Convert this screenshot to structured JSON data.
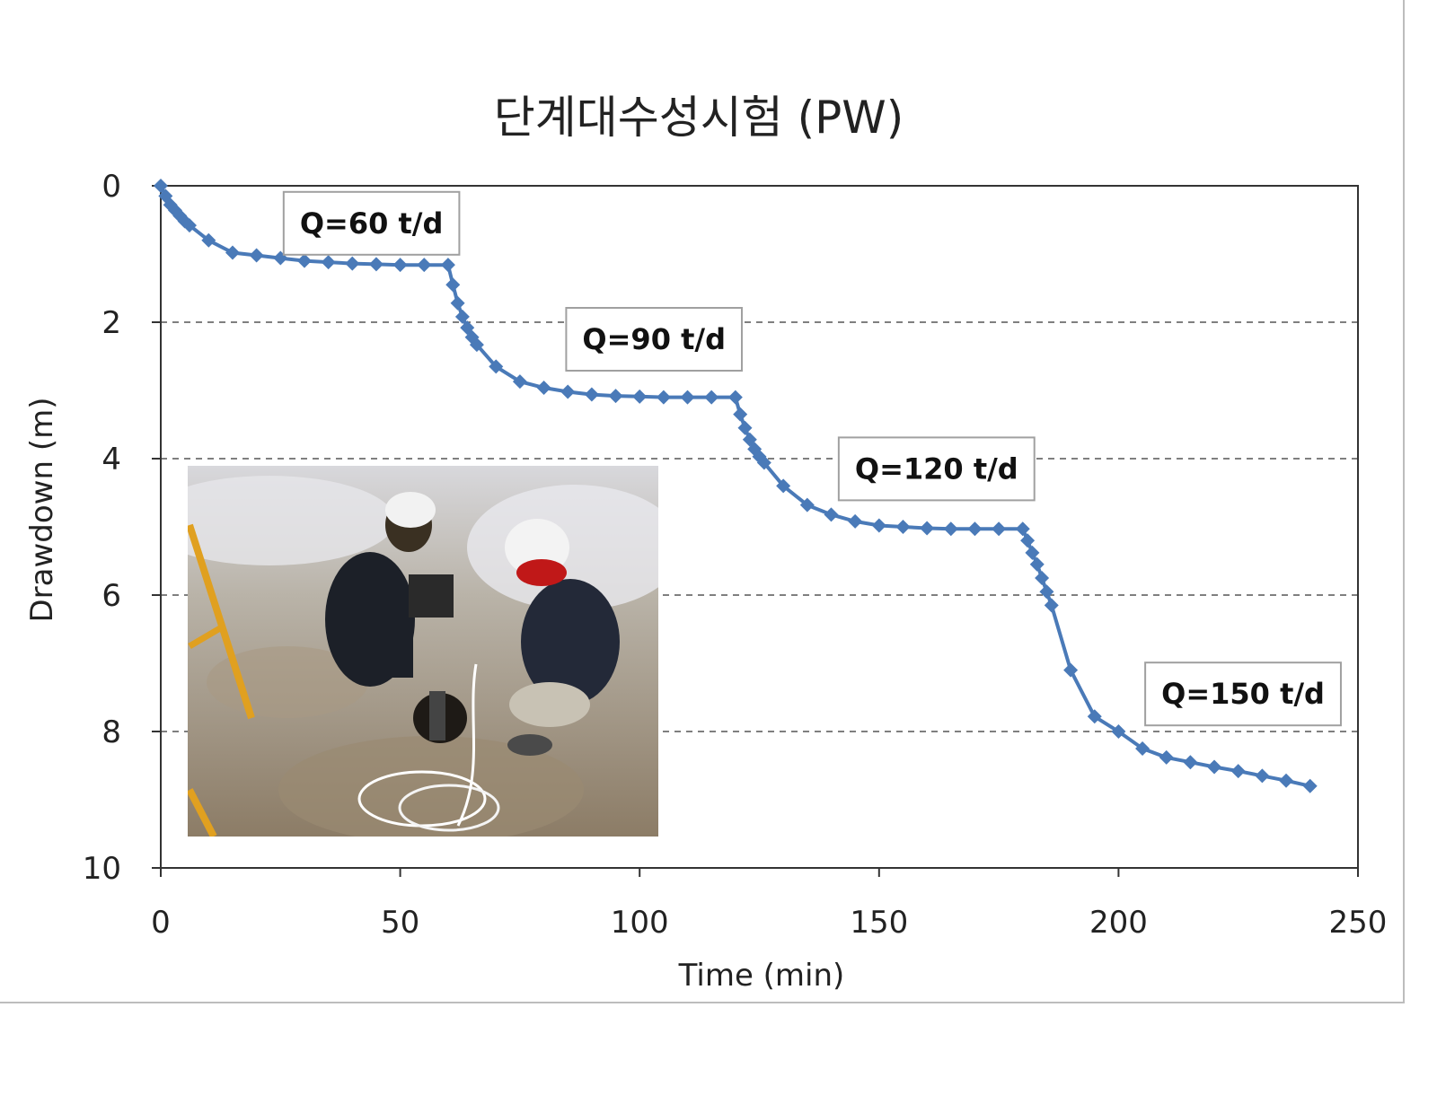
{
  "chart_data": {
    "type": "line",
    "title": "단계대수성시험 (PW)",
    "xlabel": "Time (min)",
    "ylabel": "Drawdown (m)",
    "xlim": [
      0,
      250
    ],
    "ylim": [
      0,
      10
    ],
    "y_inverted": true,
    "x_ticks": [
      0,
      50,
      100,
      150,
      200,
      250
    ],
    "y_ticks": [
      0,
      2,
      4,
      6,
      8,
      10
    ],
    "grid": "horizontal dashed",
    "series": [
      {
        "color": "#4a7ab8",
        "marker": "diamond",
        "points": [
          [
            0,
            0.0
          ],
          [
            1,
            0.15
          ],
          [
            2,
            0.28
          ],
          [
            3,
            0.36
          ],
          [
            4,
            0.44
          ],
          [
            5,
            0.52
          ],
          [
            6,
            0.58
          ],
          [
            10,
            0.8
          ],
          [
            15,
            0.98
          ],
          [
            20,
            1.02
          ],
          [
            25,
            1.06
          ],
          [
            30,
            1.1
          ],
          [
            35,
            1.12
          ],
          [
            40,
            1.14
          ],
          [
            45,
            1.15
          ],
          [
            50,
            1.16
          ],
          [
            55,
            1.16
          ],
          [
            60,
            1.16
          ],
          [
            61,
            1.45
          ],
          [
            62,
            1.72
          ],
          [
            63,
            1.92
          ],
          [
            64,
            2.08
          ],
          [
            65,
            2.22
          ],
          [
            66,
            2.33
          ],
          [
            70,
            2.65
          ],
          [
            75,
            2.87
          ],
          [
            80,
            2.96
          ],
          [
            85,
            3.02
          ],
          [
            90,
            3.06
          ],
          [
            95,
            3.08
          ],
          [
            100,
            3.09
          ],
          [
            105,
            3.1
          ],
          [
            110,
            3.1
          ],
          [
            115,
            3.1
          ],
          [
            120,
            3.1
          ],
          [
            121,
            3.35
          ],
          [
            122,
            3.55
          ],
          [
            123,
            3.72
          ],
          [
            124,
            3.86
          ],
          [
            125,
            3.97
          ],
          [
            126,
            4.06
          ],
          [
            130,
            4.4
          ],
          [
            135,
            4.68
          ],
          [
            140,
            4.82
          ],
          [
            145,
            4.92
          ],
          [
            150,
            4.98
          ],
          [
            155,
            5.0
          ],
          [
            160,
            5.02
          ],
          [
            165,
            5.03
          ],
          [
            170,
            5.03
          ],
          [
            175,
            5.03
          ],
          [
            180,
            5.03
          ],
          [
            181,
            5.2
          ],
          [
            182,
            5.38
          ],
          [
            183,
            5.55
          ],
          [
            184,
            5.75
          ],
          [
            185,
            5.95
          ],
          [
            186,
            6.15
          ],
          [
            190,
            7.1
          ],
          [
            195,
            7.78
          ],
          [
            200,
            8.0
          ],
          [
            205,
            8.25
          ],
          [
            210,
            8.38
          ],
          [
            215,
            8.45
          ],
          [
            220,
            8.52
          ],
          [
            225,
            8.58
          ],
          [
            230,
            8.65
          ],
          [
            235,
            8.72
          ],
          [
            240,
            8.8
          ]
        ]
      }
    ],
    "annotations": [
      {
        "text": "Q=60 t/d",
        "x": 44,
        "y": 0.55
      },
      {
        "text": "Q=90 t/d",
        "x": 103,
        "y": 2.25
      },
      {
        "text": "Q=120 t/d",
        "x": 162,
        "y": 4.15
      },
      {
        "text": "Q=150 t/d",
        "x": 226,
        "y": 7.45
      }
    ]
  },
  "inset_photo": {
    "description": "field photo inset"
  }
}
